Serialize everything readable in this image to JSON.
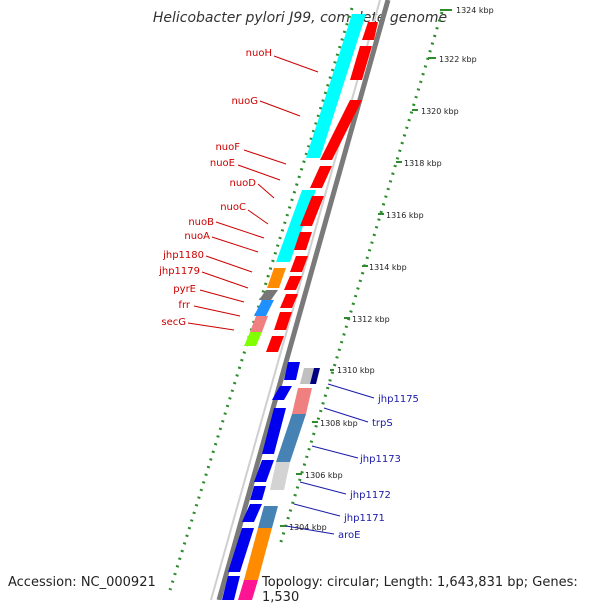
{
  "title": "Helicobacter pylori J99, complete genome",
  "accession": "Accession: NC_000921",
  "summary": "Topology: circular; Length: 1,643,831 bp; Genes: 1,530",
  "colors": {
    "red_label": "#cc0000",
    "blue_label": "#1a1aa8",
    "backbone": "#777777",
    "tick_green": "#2e8b2e"
  },
  "tick_labels": [
    "1324 kbp",
    "1322 kbp",
    "1320 kbp",
    "1318 kbp",
    "1316 kbp",
    "1314 kbp",
    "1312 kbp",
    "1310 kbp",
    "1308 kbp",
    "1306 kbp",
    "1304 kbp"
  ],
  "upper_genes": [
    {
      "label": "nuoH"
    },
    {
      "label": "nuoG"
    },
    {
      "label": "nuoF"
    },
    {
      "label": "nuoE"
    },
    {
      "label": "nuoD"
    },
    {
      "label": "nuoC"
    },
    {
      "label": "nuoB"
    },
    {
      "label": "nuoA"
    },
    {
      "label": "jhp1180"
    },
    {
      "label": "jhp1179"
    },
    {
      "label": "pyrE"
    },
    {
      "label": "frr"
    },
    {
      "label": "secG"
    }
  ],
  "lower_genes": [
    {
      "label": "jhp1175"
    },
    {
      "label": "trpS"
    },
    {
      "label": "jhp1173"
    },
    {
      "label": "jhp1172"
    },
    {
      "label": "jhp1171"
    },
    {
      "label": "aroE"
    }
  ]
}
